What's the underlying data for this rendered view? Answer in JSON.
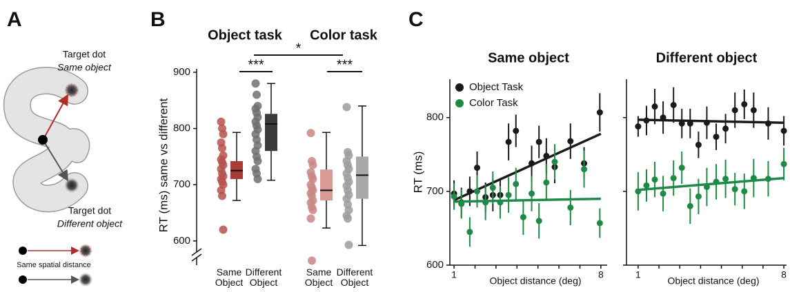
{
  "panel_a": {
    "label": "A",
    "top_target_title": "Target dot",
    "top_target_subtitle": "Same object",
    "bottom_target_title": "Target dot",
    "bottom_target_subtitle": "Different object",
    "legend_caption": "Same spatial distance"
  },
  "chart_data": [
    {
      "type": "box",
      "panel_label": "B",
      "group_titles": [
        "Object task",
        "Color task"
      ],
      "significance": [
        "*",
        "***",
        "***"
      ],
      "ylabel": "RT (ms) same vs different",
      "ylim": [
        557,
        906
      ],
      "yticks": [
        600,
        700,
        800,
        900
      ],
      "categories": [
        "Same Object",
        "Different Object",
        "Same Object",
        "Different Object"
      ],
      "groups": [
        {
          "color": "#b5524d",
          "box_color": "#a83a37",
          "points": [
            812,
            800,
            790,
            775,
            765,
            752,
            745,
            740,
            735,
            728,
            720,
            715,
            710,
            705,
            700,
            690,
            680,
            620
          ],
          "whisker_low": 672,
          "q1": 710,
          "median": 725,
          "q3": 742,
          "whisker_high": 793
        },
        {
          "color": "#707070",
          "box_color": "#3a3a3a",
          "points": [
            880,
            860,
            840,
            835,
            828,
            820,
            812,
            805,
            798,
            790,
            780,
            770,
            760,
            750,
            742,
            728,
            720,
            710
          ],
          "whisker_low": 708,
          "q1": 760,
          "median": 808,
          "q3": 826,
          "whisker_high": 880
        },
        {
          "color": "#c98784",
          "box_color": "#d99a95",
          "points": [
            792,
            742,
            735,
            722,
            715,
            710,
            700,
            695,
            690,
            685,
            680,
            672,
            668,
            660,
            655,
            640,
            565
          ],
          "whisker_low": 623,
          "q1": 672,
          "median": 690,
          "q3": 727,
          "whisker_high": 793
        },
        {
          "color": "#9c9c9c",
          "box_color": "#a9a9a9",
          "points": [
            838,
            758,
            752,
            742,
            735,
            728,
            720,
            712,
            705,
            698,
            690,
            682,
            675,
            665,
            655,
            645,
            640,
            593
          ],
          "whisker_low": 592,
          "q1": 675,
          "median": 717,
          "q3": 750,
          "whisker_high": 840
        }
      ]
    },
    {
      "type": "scatter",
      "panel_label": "C",
      "title": "Same object",
      "xlabel": "Object distance (deg)",
      "ylabel": "RT (ms)",
      "xlim": [
        0.8,
        8.3
      ],
      "xticks": [
        1,
        8
      ],
      "xminor_ticks": [
        2,
        3,
        4,
        5,
        6,
        7
      ],
      "ylim": [
        600,
        852
      ],
      "yticks": [
        600,
        700,
        800
      ],
      "ytick_labels": true,
      "legend": "upper left",
      "series": [
        {
          "name": "Object Task",
          "color": "#1a1a1a",
          "x": [
            1,
            1.35,
            1.75,
            2.1,
            2.5,
            2.85,
            3.2,
            3.6,
            3.95,
            4.7,
            5.05,
            5.4,
            5.8,
            6.55,
            7.2,
            7.95
          ],
          "values": [
            697,
            685,
            700,
            732,
            692,
            695,
            695,
            767,
            782,
            738,
            767,
            748,
            733,
            768,
            738,
            807
          ],
          "errors": [
            18,
            20,
            20,
            22,
            20,
            22,
            20,
            25,
            22,
            24,
            22,
            24,
            22,
            24,
            22,
            26
          ],
          "fit_x": [
            1,
            8
          ],
          "fit_values": [
            688,
            778
          ]
        },
        {
          "name": "Color Task",
          "color": "#1f8a45",
          "x": [
            1,
            1.35,
            1.75,
            2.1,
            2.5,
            2.85,
            3.2,
            3.6,
            3.95,
            4.3,
            4.7,
            5.05,
            5.4,
            5.8,
            6.55,
            7.2,
            7.95
          ],
          "values": [
            693,
            683,
            645,
            700,
            685,
            705,
            685,
            695,
            710,
            665,
            697,
            660,
            712,
            740,
            678,
            730,
            657
          ],
          "errors": [
            18,
            20,
            20,
            22,
            24,
            22,
            22,
            24,
            22,
            24,
            24,
            24,
            25,
            24,
            24,
            25,
            20
          ],
          "fit_x": [
            1,
            8
          ],
          "fit_values": [
            686,
            690
          ]
        }
      ]
    },
    {
      "type": "scatter",
      "title": "Different object",
      "xlabel": "Object distance (deg)",
      "xlim": [
        0.44,
        8.13
      ],
      "xticks": [
        1,
        8
      ],
      "xminor_ticks": [
        2,
        3,
        4,
        5,
        6,
        7
      ],
      "ylim": [
        600,
        852
      ],
      "yticks": [
        600,
        700,
        800
      ],
      "ytick_labels": false,
      "series": [
        {
          "color": "#1a1a1a",
          "x": [
            1,
            1.4,
            1.8,
            2.2,
            2.7,
            3.1,
            3.5,
            3.9,
            4.3,
            4.75,
            5.2,
            5.65,
            6.1,
            6.55,
            7.25,
            8
          ],
          "values": [
            788,
            796,
            815,
            800,
            817,
            792,
            792,
            763,
            793,
            774,
            785,
            810,
            818,
            810,
            792,
            782
          ],
          "errors": [
            14,
            20,
            24,
            22,
            24,
            20,
            20,
            18,
            22,
            18,
            20,
            24,
            20,
            24,
            22,
            20
          ],
          "fit_x": [
            1,
            8
          ],
          "fit_values": [
            797,
            793
          ]
        },
        {
          "color": "#1f8a45",
          "x": [
            1,
            1.4,
            1.8,
            2.2,
            2.7,
            3.1,
            3.5,
            3.9,
            4.3,
            4.75,
            5.2,
            5.65,
            6.1,
            6.55,
            7.25,
            8
          ],
          "values": [
            700,
            708,
            716,
            697,
            718,
            732,
            680,
            693,
            706,
            713,
            717,
            703,
            700,
            718,
            717,
            737
          ],
          "errors": [
            26,
            22,
            24,
            24,
            24,
            22,
            24,
            24,
            26,
            24,
            26,
            22,
            24,
            26,
            24,
            22
          ],
          "fit_x": [
            1,
            8
          ],
          "fit_values": [
            702,
            718
          ]
        }
      ]
    }
  ]
}
